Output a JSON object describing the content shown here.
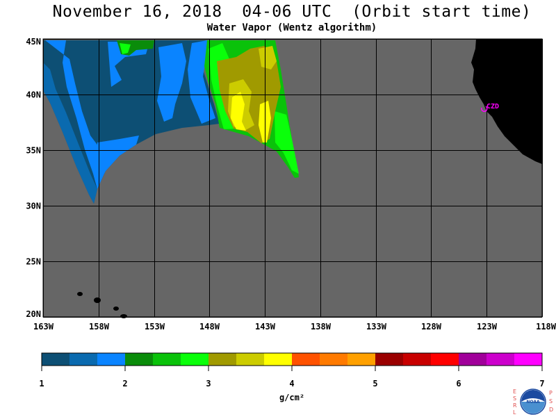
{
  "header": {
    "title": "November 16, 2018  04-06 UTC  (Orbit start time)",
    "subtitle": "Water Vapor (Wentz algorithm)"
  },
  "map": {
    "lat_labels": [
      {
        "value": 45,
        "label": "45N"
      },
      {
        "value": 40,
        "label": "40N"
      },
      {
        "value": 35,
        "label": "35N"
      },
      {
        "value": 30,
        "label": "30N"
      },
      {
        "value": 25,
        "label": "25N"
      },
      {
        "value": 20,
        "label": "20N"
      }
    ],
    "lon_labels": [
      {
        "value": -163,
        "label": "163W"
      },
      {
        "value": -158,
        "label": "158W"
      },
      {
        "value": -153,
        "label": "153W"
      },
      {
        "value": -148,
        "label": "148W"
      },
      {
        "value": -143,
        "label": "143W"
      },
      {
        "value": -138,
        "label": "138W"
      },
      {
        "value": -133,
        "label": "133W"
      },
      {
        "value": -128,
        "label": "128W"
      },
      {
        "value": -123,
        "label": "123W"
      },
      {
        "value": -118,
        "label": "118W"
      }
    ],
    "station_label": "CZD",
    "station_color": "#ff00ff",
    "no_data_color": "#666666",
    "land_color": "#000000"
  },
  "colorbar": {
    "colors": [
      "#0d4f74",
      "#0a6aaf",
      "#0a84ff",
      "#0a8c0a",
      "#0ac20a",
      "#0aff0a",
      "#a09a00",
      "#cccc00",
      "#ffff00",
      "#ff5200",
      "#ff7a00",
      "#ffa000",
      "#9a0000",
      "#c80000",
      "#ff0000",
      "#a0009a",
      "#cc00cc",
      "#ff00ff"
    ],
    "tick_labels": [
      "1",
      "2",
      "3",
      "4",
      "5",
      "6",
      "7"
    ],
    "unit": "g/cm²"
  },
  "logo": {
    "left_letters": "ESRL",
    "right_letters": "PSD",
    "center_text": "NOAA"
  }
}
